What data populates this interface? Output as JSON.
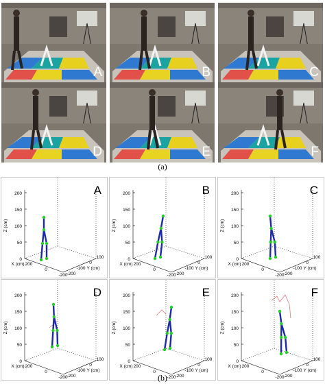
{
  "part_a": {
    "caption": "(a)",
    "frames": [
      {
        "letter": "A"
      },
      {
        "letter": "B"
      },
      {
        "letter": "C"
      },
      {
        "letter": "D"
      },
      {
        "letter": "E"
      },
      {
        "letter": "F"
      }
    ]
  },
  "part_b": {
    "caption": "(b)",
    "plots": [
      {
        "letter": "A"
      },
      {
        "letter": "B"
      },
      {
        "letter": "C"
      },
      {
        "letter": "D"
      },
      {
        "letter": "E"
      },
      {
        "letter": "F"
      }
    ],
    "z_label": "Z (cm)",
    "x_label": "X (cm)",
    "y_label": "Y (cm)",
    "z_ticks": [
      "200",
      "150",
      "100",
      "50",
      "0"
    ],
    "x_ticks": [
      "200",
      "0",
      "-200"
    ],
    "y_ticks": [
      "-200",
      "-100",
      "0",
      "100"
    ],
    "colors": {
      "skeleton": "#1c2aa6",
      "joints": "#1fcf23",
      "trace": "#e0787a"
    }
  }
}
